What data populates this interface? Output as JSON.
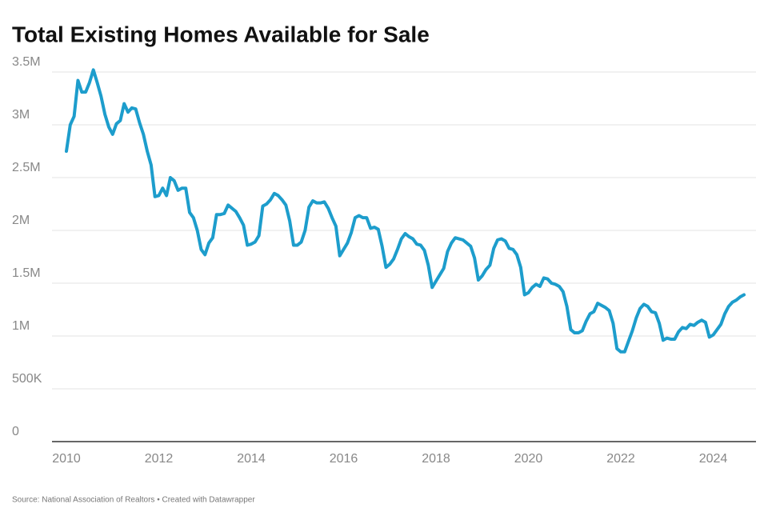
{
  "chart_data": {
    "type": "line",
    "title": "Total Existing Homes Available for Sale",
    "source": "Source: National Association of Realtors • Created with Datawrapper",
    "x": [
      "2010-01",
      "2010-02",
      "2010-03",
      "2010-04",
      "2010-05",
      "2010-06",
      "2010-07",
      "2010-08",
      "2010-09",
      "2010-10",
      "2010-11",
      "2010-12",
      "2011-01",
      "2011-02",
      "2011-03",
      "2011-04",
      "2011-05",
      "2011-06",
      "2011-07",
      "2011-08",
      "2011-09",
      "2011-10",
      "2011-11",
      "2011-12",
      "2012-01",
      "2012-02",
      "2012-03",
      "2012-04",
      "2012-05",
      "2012-06",
      "2012-07",
      "2012-08",
      "2012-09",
      "2012-10",
      "2012-11",
      "2012-12",
      "2013-01",
      "2013-02",
      "2013-03",
      "2013-04",
      "2013-05",
      "2013-06",
      "2013-07",
      "2013-08",
      "2013-09",
      "2013-10",
      "2013-11",
      "2013-12",
      "2014-01",
      "2014-02",
      "2014-03",
      "2014-04",
      "2014-05",
      "2014-06",
      "2014-07",
      "2014-08",
      "2014-09",
      "2014-10",
      "2014-11",
      "2014-12",
      "2015-01",
      "2015-02",
      "2015-03",
      "2015-04",
      "2015-05",
      "2015-06",
      "2015-07",
      "2015-08",
      "2015-09",
      "2015-10",
      "2015-11",
      "2015-12",
      "2016-01",
      "2016-02",
      "2016-03",
      "2016-04",
      "2016-05",
      "2016-06",
      "2016-07",
      "2016-08",
      "2016-09",
      "2016-10",
      "2016-11",
      "2016-12",
      "2017-01",
      "2017-02",
      "2017-03",
      "2017-04",
      "2017-05",
      "2017-06",
      "2017-07",
      "2017-08",
      "2017-09",
      "2017-10",
      "2017-11",
      "2017-12",
      "2018-01",
      "2018-02",
      "2018-03",
      "2018-04",
      "2018-05",
      "2018-06",
      "2018-07",
      "2018-08",
      "2018-09",
      "2018-10",
      "2018-11",
      "2018-12",
      "2019-01",
      "2019-02",
      "2019-03",
      "2019-04",
      "2019-05",
      "2019-06",
      "2019-07",
      "2019-08",
      "2019-09",
      "2019-10",
      "2019-11",
      "2019-12",
      "2020-01",
      "2020-02",
      "2020-03",
      "2020-04",
      "2020-05",
      "2020-06",
      "2020-07",
      "2020-08",
      "2020-09",
      "2020-10",
      "2020-11",
      "2020-12",
      "2021-01",
      "2021-02",
      "2021-03",
      "2021-04",
      "2021-05",
      "2021-06",
      "2021-07",
      "2021-08",
      "2021-09",
      "2021-10",
      "2021-11",
      "2021-12",
      "2022-01",
      "2022-02",
      "2022-03",
      "2022-04",
      "2022-05",
      "2022-06",
      "2022-07",
      "2022-08",
      "2022-09",
      "2022-10",
      "2022-11",
      "2022-12",
      "2023-01",
      "2023-02",
      "2023-03",
      "2023-04",
      "2023-05",
      "2023-06",
      "2023-07",
      "2023-08",
      "2023-09",
      "2023-10",
      "2023-11",
      "2023-12",
      "2024-01",
      "2024-02",
      "2024-03",
      "2024-04",
      "2024-05",
      "2024-06",
      "2024-07",
      "2024-08",
      "2024-09"
    ],
    "series": [
      {
        "color": "#1d9dcc",
        "values": [
          2750000,
          3000000,
          3080000,
          3420000,
          3310000,
          3310000,
          3400000,
          3520000,
          3400000,
          3270000,
          3100000,
          2980000,
          2910000,
          3010000,
          3040000,
          3200000,
          3120000,
          3160000,
          3150000,
          3020000,
          2910000,
          2750000,
          2620000,
          2320000,
          2330000,
          2400000,
          2330000,
          2500000,
          2470000,
          2380000,
          2400000,
          2400000,
          2170000,
          2120000,
          2000000,
          1820000,
          1770000,
          1880000,
          1930000,
          2150000,
          2150000,
          2160000,
          2240000,
          2210000,
          2180000,
          2120000,
          2050000,
          1860000,
          1870000,
          1890000,
          1950000,
          2230000,
          2250000,
          2290000,
          2350000,
          2330000,
          2290000,
          2240000,
          2090000,
          1860000,
          1860000,
          1890000,
          2000000,
          2220000,
          2280000,
          2260000,
          2260000,
          2270000,
          2210000,
          2120000,
          2040000,
          1760000,
          1820000,
          1880000,
          1980000,
          2120000,
          2140000,
          2120000,
          2120000,
          2020000,
          2030000,
          2010000,
          1850000,
          1650000,
          1680000,
          1730000,
          1820000,
          1920000,
          1970000,
          1940000,
          1920000,
          1870000,
          1860000,
          1810000,
          1670000,
          1460000,
          1520000,
          1580000,
          1640000,
          1800000,
          1880000,
          1930000,
          1920000,
          1910000,
          1880000,
          1850000,
          1740000,
          1530000,
          1570000,
          1630000,
          1670000,
          1830000,
          1910000,
          1920000,
          1900000,
          1830000,
          1820000,
          1770000,
          1650000,
          1390000,
          1410000,
          1460000,
          1490000,
          1470000,
          1550000,
          1540000,
          1500000,
          1490000,
          1470000,
          1420000,
          1280000,
          1060000,
          1030000,
          1030000,
          1050000,
          1140000,
          1210000,
          1230000,
          1310000,
          1290000,
          1270000,
          1240000,
          1120000,
          880000,
          850000,
          850000,
          950000,
          1050000,
          1170000,
          1260000,
          1300000,
          1280000,
          1230000,
          1220000,
          1120000,
          960000,
          980000,
          970000,
          970000,
          1040000,
          1080000,
          1070000,
          1110000,
          1100000,
          1130000,
          1150000,
          1130000,
          990000,
          1010000,
          1060000,
          1110000,
          1210000,
          1280000,
          1320000,
          1340000,
          1370000,
          1390000
        ]
      }
    ],
    "xlim": [
      "2010-01",
      "2024-09"
    ],
    "xticks": [
      "2010",
      "2012",
      "2014",
      "2016",
      "2018",
      "2020",
      "2022",
      "2024"
    ],
    "ylim": [
      0,
      3500000
    ],
    "yticks": [
      0,
      {
        "value": 500000,
        "label": "500K"
      },
      {
        "value": 1000000,
        "label": "1M"
      },
      {
        "value": 1500000,
        "label": "1.5M"
      },
      {
        "value": 2000000,
        "label": "2M"
      },
      {
        "value": 2500000,
        "label": "2.5M"
      },
      {
        "value": 3000000,
        "label": "3M"
      },
      {
        "value": 3500000,
        "label": "3.5M"
      }
    ],
    "grid": true
  }
}
